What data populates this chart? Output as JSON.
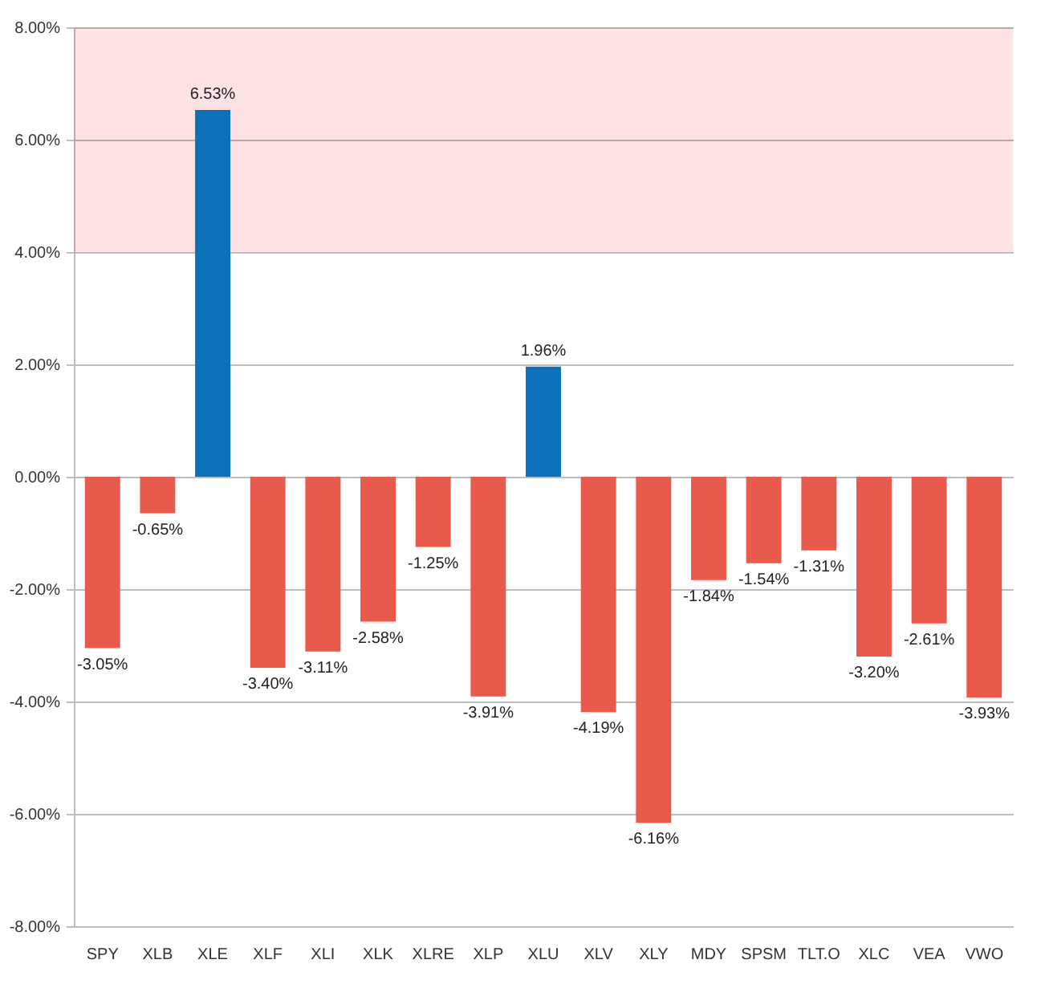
{
  "chart_data": {
    "type": "bar",
    "categories": [
      "SPY",
      "XLB",
      "XLE",
      "XLF",
      "XLI",
      "XLK",
      "XLRE",
      "XLP",
      "XLU",
      "XLV",
      "XLY",
      "MDY",
      "SPSM",
      "TLT.O",
      "XLC",
      "VEA",
      "VWO"
    ],
    "values": [
      -3.05,
      -0.65,
      6.53,
      -3.4,
      -3.11,
      -2.58,
      -1.25,
      -3.91,
      1.96,
      -4.19,
      -6.16,
      -1.84,
      -1.54,
      -1.31,
      -3.2,
      -2.61,
      -3.93
    ],
    "colors": [
      "#e85a4c",
      "#e85a4c",
      "#0b72ba",
      "#e85a4c",
      "#e85a4c",
      "#e85a4c",
      "#e85a4c",
      "#e85a4c",
      "#0b72ba",
      "#e85a4c",
      "#e85a4c",
      "#e85a4c",
      "#e85a4c",
      "#e85a4c",
      "#e85a4c",
      "#e85a4c",
      "#e85a4c"
    ],
    "value_labels": [
      "-3.05%",
      "-0.65%",
      "6.53%",
      "-3.40%",
      "-3.11%",
      "-2.58%",
      "-1.25%",
      "-3.91%",
      "1.96%",
      "-4.19%",
      "-6.16%",
      "-1.84%",
      "-1.54%",
      "-1.31%",
      "-3.20%",
      "-2.61%",
      "-3.93%"
    ],
    "ylim": [
      -8,
      8
    ],
    "yticks": [
      {
        "value": -8,
        "label": "-8.00%"
      },
      {
        "value": -6,
        "label": "-6.00%"
      },
      {
        "value": -4,
        "label": "-4.00%"
      },
      {
        "value": -2,
        "label": "-2.00%"
      },
      {
        "value": 0,
        "label": "0.00%"
      },
      {
        "value": 2,
        "label": "2.00%"
      },
      {
        "value": 4,
        "label": "4.00%"
      },
      {
        "value": 6,
        "label": "6.00%"
      },
      {
        "value": 8,
        "label": "8.00%"
      }
    ],
    "grid": "y",
    "bands": [
      {
        "axis": "y",
        "from": 4,
        "to": 8,
        "color": "#fde3e4"
      }
    ]
  }
}
